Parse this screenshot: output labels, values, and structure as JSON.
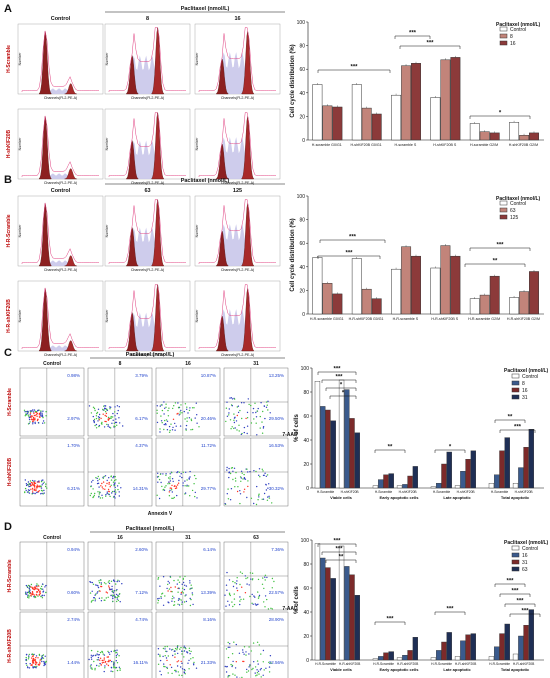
{
  "figure": {
    "panel_labels": [
      "A",
      "B",
      "C",
      "D"
    ],
    "panels": [
      {
        "id": "A",
        "header_label": "Paclitaxel (nmol/L)",
        "conditions": [
          "Control",
          "8",
          "16"
        ],
        "rows": [
          "H-Scramble",
          "H-shKIF20B"
        ],
        "x_axis": "Channels(FL2-PE-A)",
        "y_axis": "Number"
      },
      {
        "id": "B",
        "header_label": "Paclitaxel (nmol/L)",
        "conditions": [
          "Control",
          "63",
          "125"
        ],
        "rows": [
          "H-R-Scramble",
          "H-R-shKIF20B"
        ],
        "x_axis": "Channels(FL2-PE-A)",
        "y_axis": "Number"
      },
      {
        "id": "C",
        "header_label": "Paclitaxel (nmol/L)",
        "conditions": [
          "Control",
          "8",
          "16",
          "31"
        ],
        "rows": [
          "H-Scramble",
          "H-shKIF20B"
        ],
        "x_axis": "Annexin V",
        "y_axis": "7-AAD",
        "quad_values": [
          [
            "0.98%",
            "3.79%",
            "10.87%",
            "13.25%"
          ],
          [
            "2.97%",
            "6.17%",
            "20.46%",
            "29.50%"
          ],
          [
            "1.70%",
            "4.37%",
            "11.72%",
            "16.53%"
          ],
          [
            "6.21%",
            "14.31%",
            "29.77%",
            "30.32%"
          ]
        ]
      },
      {
        "id": "D",
        "header_label": "Paclitaxel (nmol/L)",
        "conditions": [
          "Control",
          "16",
          "31",
          "63"
        ],
        "rows": [
          "H-R-Scramble",
          "H-R-shKIF20B"
        ],
        "x_axis": "Annexin V",
        "y_axis": "7-AAD",
        "quad_values": [
          [
            "0.94%",
            "2.60%",
            "6.14%",
            "7.36%"
          ],
          [
            "0.60%",
            "7.12%",
            "13.39%",
            "22.57%"
          ],
          [
            "2.74%",
            "4.74%",
            "8.16%",
            "28.90%"
          ],
          [
            "1.44%",
            "16.11%",
            "21.33%",
            "22.56%"
          ]
        ]
      }
    ]
  },
  "chart_data": [
    {
      "type": "bar",
      "panel": "A",
      "ylabel": "Cell cycle distribution (%)",
      "ylim": [
        0,
        100
      ],
      "yticks": [
        0,
        20,
        40,
        60,
        80,
        100
      ],
      "legend_title": "Paclitaxel (nmol/L)",
      "legend_position": "top-right",
      "categories": [
        "H-scramble G0/G1",
        "H-shKIF20B G0/G1",
        "H-scramble S",
        "H-shKIF20B S",
        "H-scramble G2/M",
        "H-shKIF20B G2/M"
      ],
      "series": [
        {
          "name": "Control",
          "color": "#ffffff",
          "values": [
            47,
            47,
            38,
            36,
            14,
            15
          ]
        },
        {
          "name": "8",
          "color": "#c2847a",
          "values": [
            29,
            27,
            63,
            68,
            7,
            4
          ]
        },
        {
          "name": "16",
          "color": "#8c3a3a",
          "values": [
            28,
            22,
            65,
            70,
            6,
            6
          ]
        }
      ],
      "significance": [
        "***",
        "***",
        "***",
        "*"
      ]
    },
    {
      "type": "bar",
      "panel": "B",
      "ylabel": "Cell cycle distribution (%)",
      "ylim": [
        0,
        100
      ],
      "yticks": [
        0,
        20,
        40,
        60,
        80,
        100
      ],
      "legend_title": "Paclitaxel (nmol/L)",
      "legend_position": "top-right",
      "categories": [
        "H-R-scramble G0/G1",
        "H-R-shKIF20B G0/G1",
        "H-R-scramble S",
        "H-R-shKIF20B S",
        "H-R-scramble G2/M",
        "H-R-shKIF20B G2/M"
      ],
      "series": [
        {
          "name": "Control",
          "color": "#ffffff",
          "values": [
            48,
            47,
            38,
            39,
            13,
            14
          ]
        },
        {
          "name": "63",
          "color": "#c2847a",
          "values": [
            26,
            21,
            57,
            58,
            16,
            19
          ]
        },
        {
          "name": "125",
          "color": "#8c3a3a",
          "values": [
            17,
            13,
            49,
            49,
            32,
            36
          ]
        }
      ],
      "significance": [
        "***",
        "***",
        "**",
        "***"
      ]
    },
    {
      "type": "bar",
      "panel": "C",
      "ylabel": "% of cells",
      "ylim": [
        0,
        100
      ],
      "yticks": [
        0,
        20,
        40,
        60,
        80,
        100
      ],
      "legend_title": "Paclitaxel (nmol/L)",
      "legend_position": "top-right",
      "groups": [
        "Viable cells",
        "Early apoptotic cells",
        "Late apoptotic",
        "Total apoptotic"
      ],
      "subgroups": [
        "H-Scramble",
        "H-shKIF20B"
      ],
      "series": [
        {
          "name": "Control",
          "color": "#ffffff",
          "values": [
            89,
            90,
            2,
            2,
            1,
            2,
            4,
            4
          ]
        },
        {
          "name": "8",
          "color": "#3a5a8c",
          "values": [
            68,
            82,
            7,
            3,
            4,
            14,
            11,
            17
          ]
        },
        {
          "name": "16",
          "color": "#7c2a2a",
          "values": [
            65,
            58,
            11,
            10,
            20,
            24,
            31,
            34
          ]
        },
        {
          "name": "31",
          "color": "#1f2f55",
          "values": [
            56,
            46,
            12,
            18,
            30,
            31,
            42,
            49
          ]
        }
      ],
      "significance": [
        "***",
        "***",
        "*",
        "*",
        "**",
        "*",
        "**",
        "***"
      ]
    },
    {
      "type": "bar",
      "panel": "D",
      "ylabel": "% of cells",
      "ylim": [
        0,
        100
      ],
      "yticks": [
        0,
        20,
        40,
        60,
        80,
        100
      ],
      "legend_title": "Paclitaxel (nmol/L)",
      "legend_position": "top-right",
      "groups": [
        "Viable cells",
        "Early apoptotic cells",
        "Late apoptotic",
        "Total apoptotic"
      ],
      "subgroups": [
        "H-R-Scramble",
        "H-R-shKIF20B"
      ],
      "series": [
        {
          "name": "Control",
          "color": "#ffffff",
          "values": [
            97,
            95,
            1,
            2,
            2,
            3,
            3,
            5
          ]
        },
        {
          "name": "16",
          "color": "#3a5a8c",
          "values": [
            85,
            78,
            3,
            4,
            8,
            16,
            11,
            20
          ]
        },
        {
          "name": "31",
          "color": "#7c2a2a",
          "values": [
            77,
            71,
            6,
            8,
            15,
            21,
            22,
            29
          ]
        },
        {
          "name": "63",
          "color": "#1f2f55",
          "values": [
            68,
            54,
            7,
            19,
            23,
            22,
            30,
            42
          ]
        }
      ],
      "significance": [
        "***",
        "***",
        "**",
        "***",
        "***",
        "***",
        "***",
        "***",
        "***"
      ]
    }
  ]
}
